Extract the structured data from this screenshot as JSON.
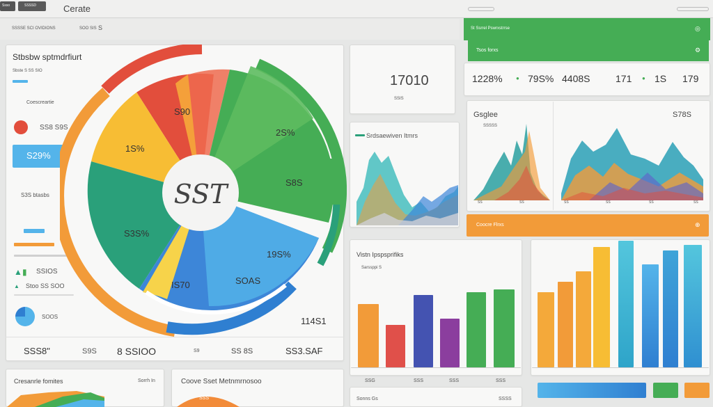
{
  "header": {
    "logo_label": "Ssso",
    "tab_label": "SSSSD",
    "app_title": "Cerate"
  },
  "toolbar": {
    "breadcrumb": "SSSSE SCI OVIDIONS",
    "view_label": "SOO SIS",
    "view_suffix": "S"
  },
  "left_panel": {
    "title": "Stbsbw sptmdrfiurt",
    "subtitle": "Sbste S SS SIO",
    "section_label": "Coescreartie",
    "stat_1": "SS8 S9S",
    "highlight_value": "S29%",
    "stat_2": "S3S btasbs",
    "stat_3": "SSIOS",
    "stat_4": "Stoo SS SOO",
    "legend_label": "SOOS",
    "footer": [
      "SSS8\"",
      "S9S",
      "8 SSIOO",
      "S9",
      "SS 8S",
      "SS3.SAF"
    ],
    "big_number": "114S1"
  },
  "donut": {
    "center_label": "SST",
    "slice_labels": [
      "S90",
      "2S%",
      "1S%",
      "S8S",
      "S3S%",
      "19S%",
      "IS70",
      "SOAS"
    ]
  },
  "kpi_card": {
    "value": "17010",
    "label": "SSIS"
  },
  "mini_chart": {
    "title": "Srdsaewiven Itmrs"
  },
  "top_right": {
    "title": "St Ssrrel Pswrxstrrse",
    "sub": "Tsos forxs",
    "metrics": [
      "1228%",
      "79S%",
      "4408S",
      "171",
      "1S",
      "179"
    ]
  },
  "area_panel": {
    "title": "Gsglee",
    "subtitle": "SSSSS",
    "value": "S78S",
    "x_ticks": [
      "SS",
      "SS",
      "SS",
      "SS",
      "SS",
      "SS",
      "SS"
    ]
  },
  "orange_banner": {
    "label": "Coocre Flrxs"
  },
  "bar_panel": {
    "title": "Vistn Ipspsprifiks",
    "subtitle": "Sarssppi S",
    "x_ticks": [
      "SSG",
      "SSS",
      "SSS",
      "SSS"
    ]
  },
  "bottom": {
    "left_title": "Cresanrle fomites",
    "left_value": "Sorrh In",
    "mid_title": "Coove Sset Metnmrnosoo",
    "mid_value": "SSS",
    "mid_footer_left": "Sonns Gs",
    "mid_footer_right": "SSSS"
  },
  "colors": {
    "red": "#e24e3c",
    "orange": "#f29b39",
    "yellow": "#f7bd34",
    "green": "#45ad55",
    "teal": "#2aa07a",
    "blue": "#3d86d8",
    "lightblue": "#54b4ea"
  }
}
